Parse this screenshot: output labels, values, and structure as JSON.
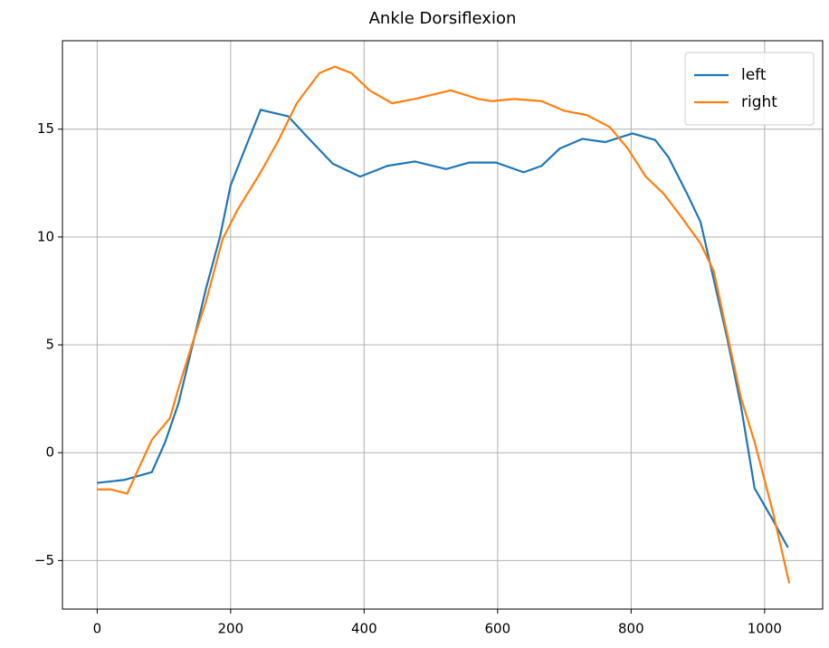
{
  "chart_data": {
    "type": "line",
    "title": "Ankle Dorsiflexion",
    "xlim": [
      -52,
      1087
    ],
    "ylim": [
      -7.25,
      19.1
    ],
    "xticks": [
      0,
      200,
      400,
      600,
      800,
      1000
    ],
    "yticks": [
      {
        "value": -5,
        "label": "−5"
      },
      0,
      5,
      10,
      15
    ],
    "grid": true,
    "legend": "upper right",
    "series": [
      {
        "name": "left",
        "color": "#1f77b4",
        "x": [
          0,
          41,
          82,
          102,
          122,
          143,
          163,
          184,
          200,
          223,
          245,
          265,
          286,
          313,
          353,
          394,
          435,
          476,
          523,
          557,
          598,
          639,
          666,
          693,
          727,
          761,
          802,
          836,
          856,
          884,
          904,
          924,
          944,
          965,
          985,
          1012,
          1035
        ],
        "values": [
          -1.4,
          -1.26,
          -0.9,
          0.5,
          2.3,
          5.0,
          7.6,
          10.0,
          12.4,
          14.2,
          15.9,
          15.75,
          15.6,
          14.7,
          13.4,
          12.8,
          13.3,
          13.5,
          13.15,
          13.45,
          13.45,
          13.0,
          13.3,
          14.1,
          14.55,
          14.4,
          14.8,
          14.5,
          13.7,
          12.0,
          10.7,
          8.0,
          5.3,
          2.1,
          -1.65,
          -3.1,
          -4.4
        ]
      },
      {
        "name": "right",
        "color": "#ff7f0e",
        "x": [
          0,
          20,
          45,
          61,
          82,
          109,
          122,
          143,
          163,
          188,
          211,
          245,
          272,
          299,
          333,
          356,
          381,
          408,
          442,
          476,
          530,
          571,
          591,
          625,
          666,
          700,
          734,
          768,
          795,
          822,
          849,
          876,
          904,
          924,
          944,
          965,
          985,
          1012,
          1037
        ],
        "values": [
          -1.7,
          -1.7,
          -1.9,
          -0.8,
          0.6,
          1.6,
          3.0,
          5.1,
          7.0,
          9.9,
          11.3,
          13.0,
          14.5,
          16.2,
          17.6,
          17.9,
          17.6,
          16.8,
          16.2,
          16.4,
          16.8,
          16.4,
          16.3,
          16.4,
          16.3,
          15.85,
          15.65,
          15.1,
          14.1,
          12.8,
          12.0,
          10.9,
          9.7,
          8.4,
          5.5,
          2.5,
          0.5,
          -2.7,
          -6.05
        ]
      }
    ]
  }
}
